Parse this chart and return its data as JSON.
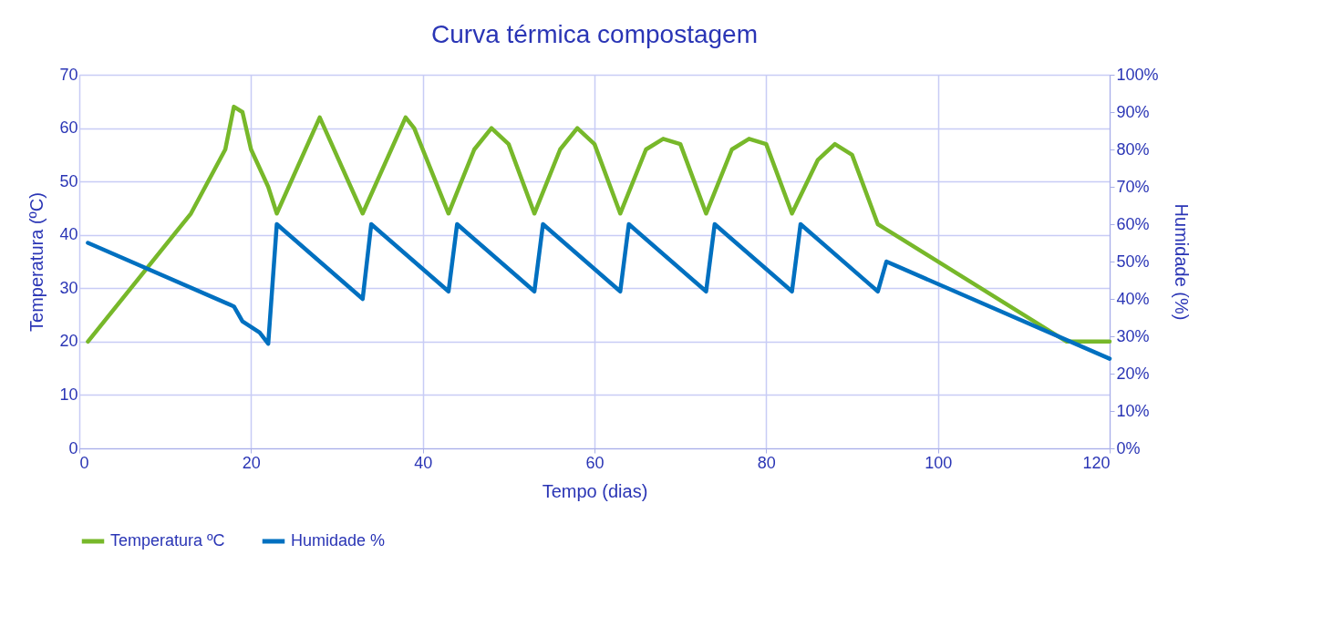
{
  "chart_data": {
    "type": "line",
    "title": "Curva térmica compostagem",
    "xlabel": "Tempo (dias)",
    "ylabel": "Temperatura (ºC)",
    "y2label": "Humidade (%)",
    "xlim": [
      0,
      120
    ],
    "xticks": [
      0,
      20,
      40,
      60,
      80,
      100,
      120
    ],
    "ylim": [
      0,
      70
    ],
    "yticks": [
      0,
      10,
      20,
      30,
      40,
      50,
      60,
      70
    ],
    "y2lim": [
      0,
      100
    ],
    "y2ticks": [
      {
        "value": 0,
        "label": "0%"
      },
      {
        "value": 10,
        "label": "10%"
      },
      {
        "value": 20,
        "label": "20%"
      },
      {
        "value": 30,
        "label": "30%"
      },
      {
        "value": 40,
        "label": "40%"
      },
      {
        "value": 50,
        "label": "50%"
      },
      {
        "value": 60,
        "label": "60%"
      },
      {
        "value": 70,
        "label": "70%"
      },
      {
        "value": 80,
        "label": "80%"
      },
      {
        "value": 90,
        "label": "90%"
      },
      {
        "value": 100,
        "label": "100%"
      }
    ],
    "grid": true,
    "legend": "bottom",
    "marker": "none",
    "line_style": "solid",
    "series": [
      {
        "name": "Temperatura ºC",
        "color": "#77b82a",
        "x": [
          1,
          13,
          17,
          18,
          19,
          20,
          22,
          23,
          28,
          33,
          38,
          39,
          43,
          46,
          48,
          50,
          53,
          56,
          58,
          60,
          63,
          66,
          68,
          70,
          73,
          76,
          78,
          80,
          83,
          86,
          88,
          90,
          93,
          94,
          115,
          120
        ],
        "values": [
          20,
          44,
          56,
          64,
          63,
          56,
          49,
          44,
          62,
          44,
          62,
          60,
          44,
          56,
          60,
          57,
          44,
          56,
          60,
          57,
          44,
          56,
          58,
          57,
          44,
          56,
          58,
          57,
          44,
          54,
          57,
          55,
          42,
          41,
          20,
          20
        ]
      },
      {
        "name": "Humidade %",
        "color": "#0070c0",
        "axis": "y2",
        "x": [
          1,
          17,
          18,
          19,
          21,
          22,
          23,
          24,
          33,
          34,
          35,
          43,
          44,
          45,
          53,
          54,
          55,
          63,
          64,
          65,
          73,
          74,
          75,
          83,
          84,
          85,
          92,
          93,
          94,
          95,
          120
        ],
        "values": [
          55,
          39,
          38,
          34,
          31,
          28,
          60,
          58,
          40,
          60,
          58,
          42,
          60,
          58,
          42,
          60,
          58,
          42,
          60,
          58,
          42,
          60,
          58,
          42,
          60,
          58,
          44,
          42,
          50,
          49,
          24
        ]
      }
    ]
  }
}
